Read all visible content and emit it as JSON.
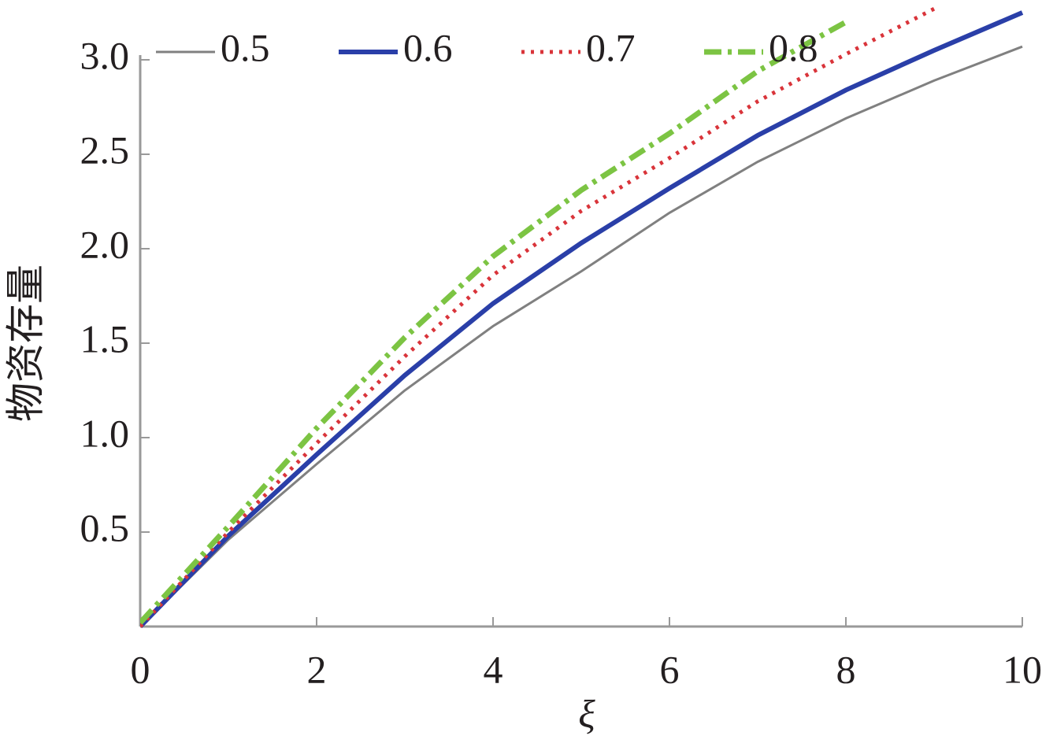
{
  "chart_data": {
    "type": "line",
    "x_label": "ξ",
    "y_label": "物资存量",
    "x": [
      0,
      1,
      2,
      3,
      4,
      5,
      6,
      7,
      8,
      9,
      10
    ],
    "series": [
      {
        "name": "0.5",
        "color": "#808080",
        "dash": "solid",
        "width": 3,
        "values": [
          0,
          0.46,
          0.86,
          1.25,
          1.59,
          1.88,
          2.19,
          2.46,
          2.69,
          2.89,
          3.07
        ]
      },
      {
        "name": "0.6",
        "color": "#2a3fa8",
        "dash": "solid",
        "width": 6,
        "values": [
          0,
          0.48,
          0.91,
          1.33,
          1.71,
          2.03,
          2.32,
          2.6,
          2.84,
          3.05,
          3.25
        ]
      },
      {
        "name": "0.7",
        "color": "#d9343a",
        "dash": "dotted",
        "width": 5,
        "values": [
          0,
          0.5,
          0.97,
          1.43,
          1.86,
          2.2,
          2.48,
          2.78,
          3.03,
          3.27,
          null
        ]
      },
      {
        "name": "0.8",
        "color": "#7cc443",
        "dash": "dashdot",
        "width": 7,
        "values": [
          0.02,
          0.53,
          1.05,
          1.53,
          1.96,
          2.31,
          2.61,
          2.94,
          3.2,
          null,
          null
        ]
      }
    ],
    "xlim": [
      0,
      10
    ],
    "ylim": [
      0,
      3.25
    ],
    "xticks": [
      0,
      2,
      4,
      6,
      8,
      10
    ],
    "yticks": [
      0.5,
      {
        "value": 1,
        "label": "1.0"
      },
      1.5,
      {
        "value": 2,
        "label": "2.0"
      },
      2.5,
      {
        "value": 3,
        "label": "3.0"
      }
    ],
    "legend": "top"
  }
}
